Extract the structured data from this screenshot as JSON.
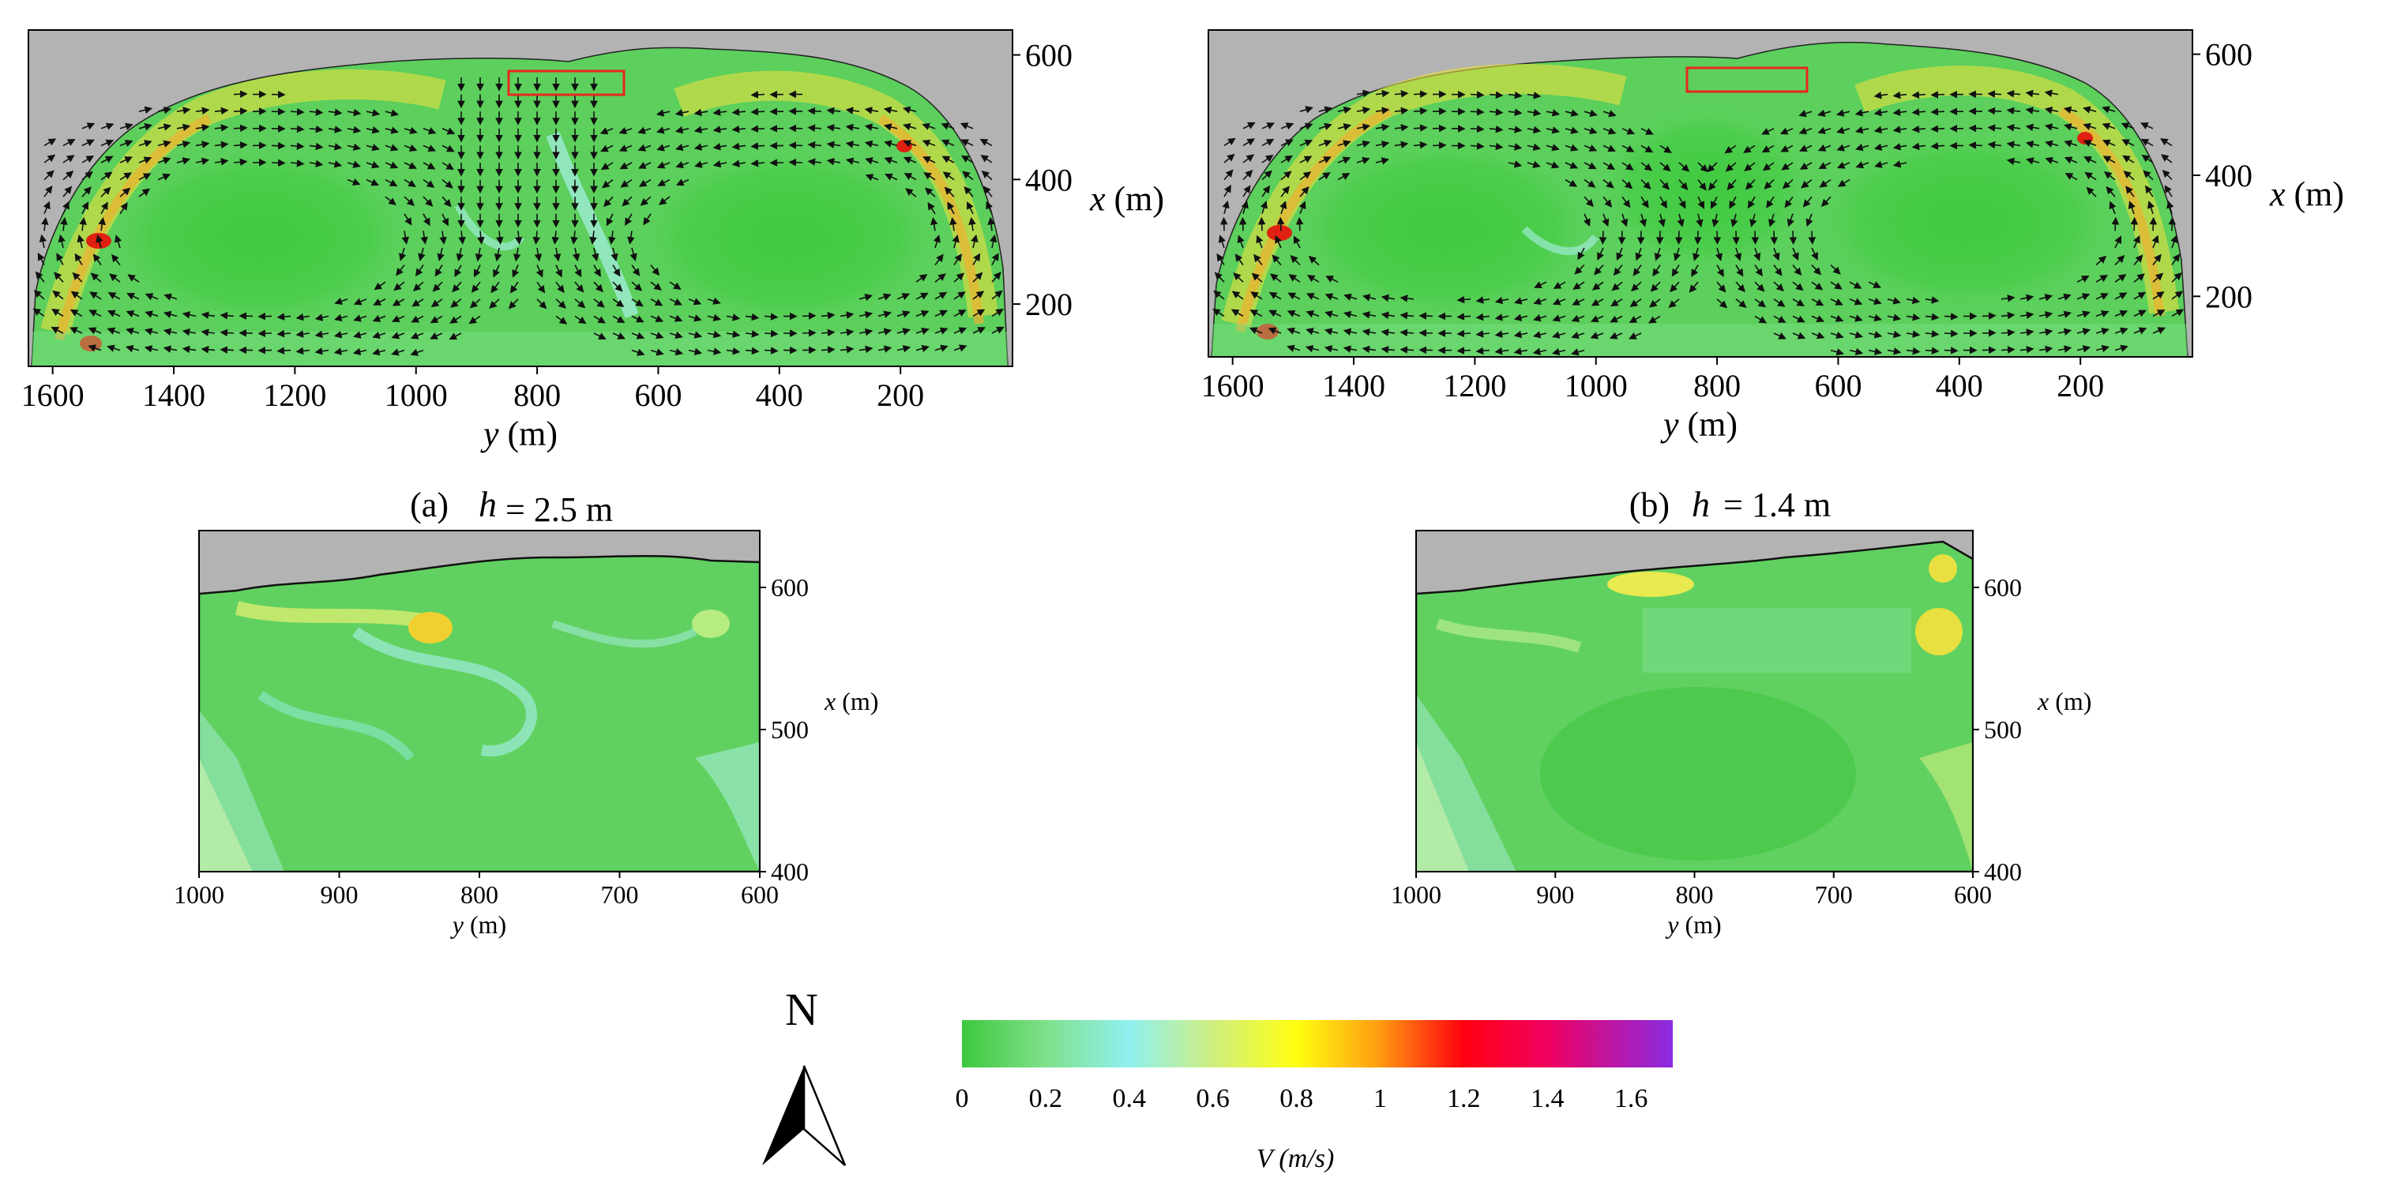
{
  "figure": {
    "description_labels": true
  },
  "panels": {
    "a": {
      "label": "(a)",
      "h_symbol": "h",
      "h_value": "= 2.5 m"
    },
    "b": {
      "label": "(b)",
      "h_symbol": "h",
      "h_value": "= 1.4 m"
    }
  },
  "compass": {
    "label": "N"
  },
  "colorbar": {
    "label": "V (m/s)",
    "ticks": [
      "0",
      "0.2",
      "0.4",
      "0.6",
      "0.8",
      "1",
      "1.2",
      "1.4",
      "1.6"
    ],
    "range": [
      0,
      1.7
    ],
    "stops": [
      {
        "v": 0.0,
        "c": "#3ec83e"
      },
      {
        "v": 0.2,
        "c": "#7fe08a"
      },
      {
        "v": 0.4,
        "c": "#8ff0f0"
      },
      {
        "v": 0.6,
        "c": "#cfee80"
      },
      {
        "v": 0.8,
        "c": "#ffff10"
      },
      {
        "v": 1.0,
        "c": "#ff9a10"
      },
      {
        "v": 1.2,
        "c": "#ff0010"
      },
      {
        "v": 1.4,
        "c": "#f00060"
      },
      {
        "v": 1.7,
        "c": "#8a2be2"
      }
    ]
  },
  "colors": {
    "land": "#b3b3b3",
    "water_base": "#55cf55",
    "arrow": "#111111",
    "box": "#e8271e"
  },
  "chart_data": [
    {
      "id": "a-main",
      "type": "heatmap",
      "title": "(a) h = 2.5 m",
      "xlabel": "y (m)",
      "ylabel": "x (m)",
      "xlim": [
        1640,
        15
      ],
      "ylim": [
        100,
        640
      ],
      "xticks": [
        1600,
        1400,
        1200,
        1000,
        800,
        600,
        400,
        200
      ],
      "yticks": [
        600,
        400,
        200
      ],
      "highlight_box": {
        "y_range": [
          650,
          840
        ],
        "x_range": [
          545,
          585
        ]
      },
      "vectors": "circulation: two counter-rotating gyres, flow converging toward y≈750 near x≈600"
    },
    {
      "id": "b-main",
      "type": "heatmap",
      "title": "(b) h = 1.4 m",
      "xlabel": "y (m)",
      "ylabel": "x (m)",
      "xlim": [
        1640,
        15
      ],
      "ylim": [
        100,
        640
      ],
      "xticks": [
        1600,
        1400,
        1200,
        1000,
        800,
        600,
        400,
        200
      ],
      "yticks": [
        600,
        400,
        200
      ],
      "highlight_box": {
        "y_range": [
          640,
          840
        ],
        "x_range": [
          550,
          590
        ]
      },
      "vectors": "circulation: two counter-rotating gyres, weaker central inflow"
    },
    {
      "id": "a-zoom",
      "type": "heatmap",
      "title": "",
      "xlabel": "y (m)",
      "ylabel": "x (m)",
      "xlim": [
        1000,
        600
      ],
      "ylim": [
        400,
        640
      ],
      "xticks": [
        1000,
        900,
        800,
        700,
        600
      ],
      "yticks": [
        600,
        500,
        400
      ]
    },
    {
      "id": "b-zoom",
      "type": "heatmap",
      "title": "",
      "xlabel": "y (m)",
      "ylabel": "x (m)",
      "xlim": [
        1000,
        600
      ],
      "ylim": [
        400,
        640
      ],
      "xticks": [
        1000,
        900,
        800,
        700,
        600
      ],
      "yticks": [
        600,
        500,
        400
      ]
    }
  ]
}
